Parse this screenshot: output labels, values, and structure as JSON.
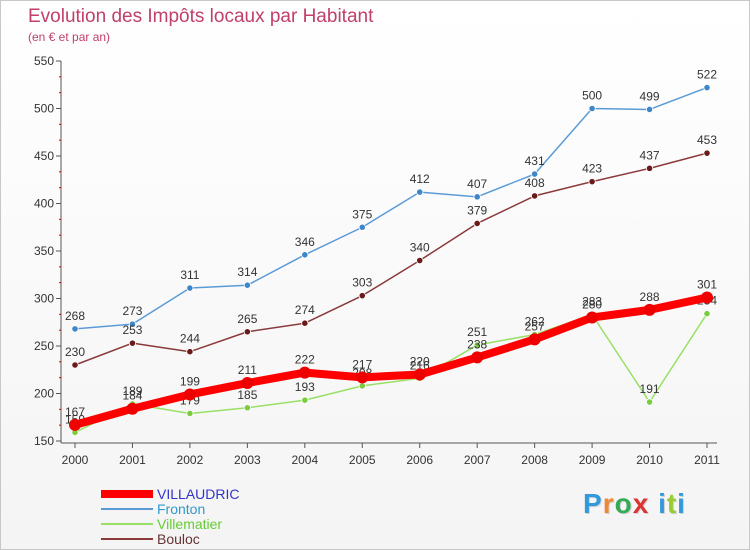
{
  "chart_data": {
    "type": "line",
    "title": "Evolution des Impôts locaux par Habitant",
    "subtitle": "(en € et par an)",
    "xlabel": "",
    "ylabel": "",
    "categories": [
      "2000",
      "2001",
      "2002",
      "2003",
      "2004",
      "2005",
      "2006",
      "2007",
      "2008",
      "2009",
      "2010",
      "2011"
    ],
    "ylim": [
      150,
      550
    ],
    "yticks": [
      150,
      200,
      250,
      300,
      350,
      400,
      450,
      500,
      550
    ],
    "grid": false,
    "legend": "bottom-left",
    "series": [
      {
        "name": "Fronton",
        "color": "#5b9bd5",
        "dot": "#3f86c8",
        "values": [
          268,
          273,
          311,
          314,
          346,
          375,
          412,
          407,
          431,
          500,
          499,
          522
        ],
        "labels": [
          "268",
          "273",
          "311",
          "314",
          "346",
          "375",
          "412",
          "407",
          "431",
          "500",
          "499",
          "522"
        ]
      },
      {
        "name": "Bouloc",
        "color": "#8b3a3a",
        "dot": "#6b1a1a",
        "values": [
          230,
          253,
          244,
          265,
          274,
          303,
          340,
          379,
          408,
          423,
          437,
          453
        ],
        "labels": [
          "230",
          "253",
          "244",
          "265",
          "274",
          "303",
          "340",
          "379",
          "408",
          "423",
          "437",
          "453"
        ]
      },
      {
        "name": "Villematier",
        "color": "#99e066",
        "dot": "#7bcc40",
        "values": [
          159,
          189,
          179,
          185,
          193,
          208,
          216,
          251,
          262,
          283,
          191,
          284
        ],
        "labels": [
          "159",
          "189",
          "179",
          "185",
          "193",
          "208",
          "216",
          "251",
          "262",
          "283",
          "191",
          "284"
        ]
      },
      {
        "name": "VILLAUDRIC",
        "color": "#ff0000",
        "dot": "#ee0000",
        "values": [
          167,
          184,
          199,
          211,
          222,
          217,
          220,
          238,
          257,
          280,
          288,
          301
        ],
        "labels": [
          "167",
          "184",
          "199",
          "211",
          "222",
          "217",
          "220",
          "238",
          "257",
          "280",
          "288",
          "301"
        ]
      }
    ],
    "legend_order": [
      "VILLAUDRIC",
      "Fronton",
      "Villematier",
      "Bouloc"
    ],
    "legend_text_colors": {
      "VILLAUDRIC": "#3333cc",
      "Fronton": "#3399cc",
      "Villematier": "#66cc33",
      "Bouloc": "#663333"
    }
  },
  "logo": {
    "text": "Prox iti"
  }
}
